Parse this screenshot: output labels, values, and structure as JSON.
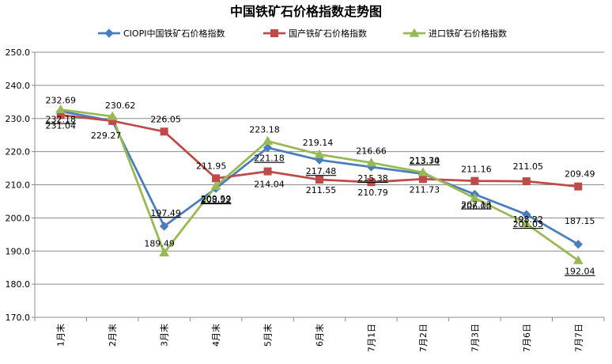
{
  "chart_data": {
    "type": "line",
    "title": "中国铁矿石价格指数走势图",
    "xlabel": "",
    "ylabel": "",
    "categories": [
      "1月末",
      "2月末",
      "3月末",
      "4月末",
      "5月末",
      "6月末",
      "7月1日",
      "7月2日",
      "7月3日",
      "7月6日",
      "7月7日"
    ],
    "ylim": [
      170.0,
      250.0
    ],
    "yticks": [
      "170.0",
      "180.0",
      "190.0",
      "200.0",
      "210.0",
      "220.0",
      "230.0",
      "240.0",
      "250.0"
    ],
    "grid": "horizontal",
    "legend_position": "top",
    "series": [
      {
        "name": "CIOPI中国铁矿石价格指数",
        "color": "#4A7EBB",
        "marker": "diamond",
        "values": [
          232.18,
          229.27,
          197.49,
          208.92,
          221.18,
          217.48,
          215.38,
          213.3,
          207.13,
          201.03,
          192.04
        ],
        "labels": [
          "232.18",
          "229.27",
          "197.49",
          "208.92",
          "221.18",
          "217.48",
          "215.38",
          "213.30",
          "207.13",
          "201.03",
          "192.04"
        ]
      },
      {
        "name": "国产铁矿石价格指数",
        "color": "#BE4B48",
        "marker": "square",
        "values": [
          231.04,
          229.27,
          226.05,
          211.95,
          214.04,
          211.55,
          210.79,
          211.73,
          211.16,
          211.05,
          209.49
        ],
        "labels": [
          "231.04",
          "",
          "226.05",
          "211.95",
          "214.04",
          "211.55",
          "210.79",
          "211.73",
          "211.16",
          "211.05",
          "209.49"
        ]
      },
      {
        "name": "进口铁矿石价格指数",
        "color": "#98B954",
        "marker": "triangle",
        "values": [
          232.69,
          230.62,
          189.49,
          209.59,
          223.18,
          219.14,
          216.66,
          213.74,
          206.0,
          198.22,
          187.15
        ],
        "labels": [
          "232.69",
          "230.62",
          "189.49",
          "209.59",
          "223.18",
          "219.14",
          "216.66",
          "213.74",
          "206.00",
          "198.22",
          "187.15"
        ]
      }
    ]
  }
}
